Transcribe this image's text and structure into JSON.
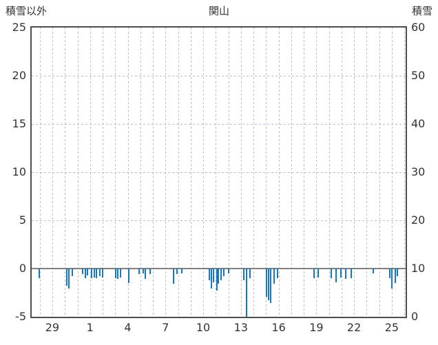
{
  "header": {
    "left_axis_title": "積雪以外",
    "station_title": "関山",
    "right_axis_title": "積雪"
  },
  "chart_data": {
    "type": "bar",
    "title": "関山",
    "grid": true,
    "legend": "none",
    "colors": {
      "bar": "#1878bf",
      "grid": "#b7bdc8",
      "frame": "#4d4d4d",
      "zero_line": "#808080",
      "text": "#333333"
    },
    "left_axis": {
      "label": "積雪以外",
      "min": -5,
      "max": 25,
      "ticks": [
        25,
        20,
        15,
        10,
        5,
        0,
        -5
      ]
    },
    "right_axis": {
      "label": "積雪",
      "min": 0,
      "max": 60,
      "ticks": [
        60,
        50,
        40,
        30,
        20,
        10,
        0
      ]
    },
    "x_axis": {
      "tick_labels": [
        "29",
        "1",
        "4",
        "7",
        "10",
        "13",
        "16",
        "19",
        "22",
        "25"
      ],
      "tick_day_offsets": [
        1.64,
        4.64,
        7.64,
        10.64,
        13.64,
        16.64,
        19.64,
        22.64,
        25.64,
        28.64
      ],
      "span_days": 29.74,
      "grid_start_day": 0.64,
      "grid_step_days": 1
    },
    "bars": [
      [
        0.55,
        -1.0
      ],
      [
        2.74,
        -1.8
      ],
      [
        2.9,
        -2.1
      ],
      [
        3.17,
        -0.8
      ],
      [
        4.0,
        -0.6
      ],
      [
        4.2,
        -1.0
      ],
      [
        4.4,
        -0.7
      ],
      [
        4.7,
        -1.0
      ],
      [
        4.9,
        -0.9
      ],
      [
        5.1,
        -1.0
      ],
      [
        5.35,
        -0.8
      ],
      [
        5.6,
        -0.9
      ],
      [
        6.6,
        -1.0
      ],
      [
        6.8,
        -1.1
      ],
      [
        7.0,
        -0.9
      ],
      [
        7.66,
        -1.5
      ],
      [
        8.5,
        -0.6
      ],
      [
        8.8,
        -0.5
      ],
      [
        9.0,
        -1.1
      ],
      [
        9.35,
        -0.6
      ],
      [
        11.2,
        -1.6
      ],
      [
        11.5,
        -0.6
      ],
      [
        11.9,
        -0.5
      ],
      [
        14.1,
        -1.2
      ],
      [
        14.25,
        -2.1
      ],
      [
        14.4,
        -1.4
      ],
      [
        14.65,
        -2.3
      ],
      [
        14.8,
        -1.6
      ],
      [
        15.0,
        -1.2
      ],
      [
        15.2,
        -0.8
      ],
      [
        15.6,
        -0.5
      ],
      [
        16.8,
        -1.2
      ],
      [
        17.05,
        -5.0
      ],
      [
        17.3,
        -1.0
      ],
      [
        18.6,
        -2.9
      ],
      [
        18.8,
        -3.3
      ],
      [
        18.95,
        -3.6
      ],
      [
        19.2,
        -1.6
      ],
      [
        19.5,
        -1.0
      ],
      [
        22.4,
        -1.0
      ],
      [
        22.75,
        -0.9
      ],
      [
        23.75,
        -1.0
      ],
      [
        24.15,
        -1.4
      ],
      [
        24.55,
        -0.9
      ],
      [
        24.9,
        -1.1
      ],
      [
        25.35,
        -1.0
      ],
      [
        27.1,
        -0.5
      ],
      [
        28.4,
        -1.0
      ],
      [
        28.6,
        -2.1
      ],
      [
        28.85,
        -1.5
      ],
      [
        29.05,
        -0.8
      ]
    ]
  }
}
